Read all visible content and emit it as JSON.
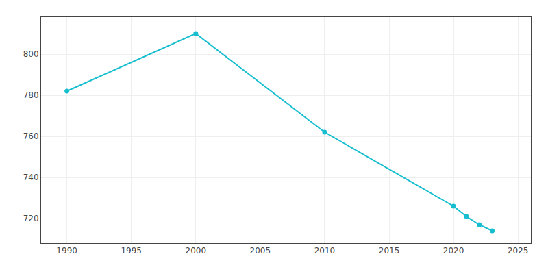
{
  "chart_data": {
    "type": "line",
    "x": [
      1990,
      2000,
      2010,
      2020,
      2021,
      2022,
      2023
    ],
    "values": [
      782,
      810,
      762,
      726,
      721,
      717,
      714
    ],
    "color": "#17becf",
    "marker": "circle",
    "xlim": [
      1988,
      2026
    ],
    "ylim": [
      708,
      818
    ],
    "xticks": [
      1990,
      1995,
      2000,
      2005,
      2010,
      2015,
      2020,
      2025
    ],
    "yticks": [
      720,
      740,
      760,
      780,
      800
    ],
    "grid": true
  }
}
